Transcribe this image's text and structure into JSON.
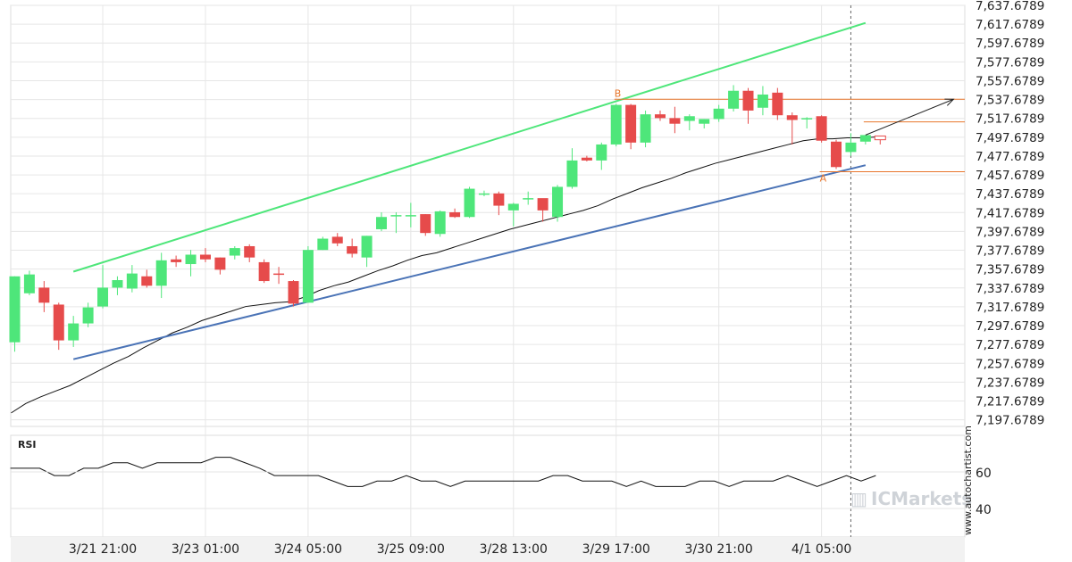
{
  "chart_data": {
    "type": "candlestick",
    "symbol_watermark": "ICMarkets",
    "vertical_credit": "www.autochartist.com",
    "price_axis": {
      "ticks": [
        "7,637.6789",
        "7,617.6789",
        "7,597.6789",
        "7,577.6789",
        "7,557.6789",
        "7,537.6789",
        "7,517.6789",
        "7,497.6789",
        "7,477.6789",
        "7,457.6789",
        "7,437.6789",
        "7,417.6789",
        "7,397.6789",
        "7,377.6789",
        "7,357.6789",
        "7,337.6789",
        "7,317.6789",
        "7,297.6789",
        "7,277.6789",
        "7,257.6789",
        "7,237.6789",
        "7,217.6789",
        "7,197.6789"
      ],
      "ylim": [
        7190.6789,
        7637.6789
      ]
    },
    "x_labels": [
      "3/21 21:00",
      "3/23 01:00",
      "3/24 05:00",
      "3/25 09:00",
      "3/28 13:00",
      "3/29 17:00",
      "3/30 21:00",
      "4/1 05:00"
    ],
    "x_label_bar_index": [
      6,
      13,
      20,
      27,
      34,
      41,
      48,
      55
    ],
    "candles": [
      {
        "o": 7280,
        "h": 7350,
        "l": 7270,
        "c": 7350
      },
      {
        "o": 7332,
        "h": 7356,
        "l": 7330,
        "c": 7352
      },
      {
        "o": 7338,
        "h": 7345,
        "l": 7312,
        "c": 7322
      },
      {
        "o": 7320,
        "h": 7322,
        "l": 7272,
        "c": 7282
      },
      {
        "o": 7282,
        "h": 7308,
        "l": 7275,
        "c": 7300
      },
      {
        "o": 7300,
        "h": 7322,
        "l": 7296,
        "c": 7317
      },
      {
        "o": 7318,
        "h": 7362,
        "l": 7316,
        "c": 7338
      },
      {
        "o": 7338,
        "h": 7350,
        "l": 7330,
        "c": 7346
      },
      {
        "o": 7337,
        "h": 7362,
        "l": 7333,
        "c": 7353
      },
      {
        "o": 7350,
        "h": 7357,
        "l": 7338,
        "c": 7340
      },
      {
        "o": 7340,
        "h": 7375,
        "l": 7327,
        "c": 7367
      },
      {
        "o": 7368,
        "h": 7372,
        "l": 7360,
        "c": 7365
      },
      {
        "o": 7363,
        "h": 7378,
        "l": 7350,
        "c": 7373
      },
      {
        "o": 7373,
        "h": 7380,
        "l": 7365,
        "c": 7368
      },
      {
        "o": 7370,
        "h": 7370,
        "l": 7352,
        "c": 7357
      },
      {
        "o": 7372,
        "h": 7382,
        "l": 7368,
        "c": 7380
      },
      {
        "o": 7382,
        "h": 7384,
        "l": 7365,
        "c": 7370
      },
      {
        "o": 7365,
        "h": 7368,
        "l": 7343,
        "c": 7345
      },
      {
        "o": 7353,
        "h": 7360,
        "l": 7342,
        "c": 7352
      },
      {
        "o": 7345,
        "h": 7346,
        "l": 7318,
        "c": 7321
      },
      {
        "o": 7322,
        "h": 7382,
        "l": 7322,
        "c": 7378
      },
      {
        "o": 7378,
        "h": 7392,
        "l": 7378,
        "c": 7390
      },
      {
        "o": 7392,
        "h": 7396,
        "l": 7382,
        "c": 7385
      },
      {
        "o": 7382,
        "h": 7390,
        "l": 7370,
        "c": 7374
      },
      {
        "o": 7370,
        "h": 7393,
        "l": 7360,
        "c": 7393
      },
      {
        "o": 7400,
        "h": 7418,
        "l": 7398,
        "c": 7413
      },
      {
        "o": 7415,
        "h": 7418,
        "l": 7396,
        "c": 7415
      },
      {
        "o": 7415,
        "h": 7428,
        "l": 7402,
        "c": 7415
      },
      {
        "o": 7416,
        "h": 7416,
        "l": 7393,
        "c": 7396
      },
      {
        "o": 7395,
        "h": 7420,
        "l": 7392,
        "c": 7419
      },
      {
        "o": 7418,
        "h": 7422,
        "l": 7412,
        "c": 7413
      },
      {
        "o": 7413,
        "h": 7445,
        "l": 7412,
        "c": 7443
      },
      {
        "o": 7438,
        "h": 7441,
        "l": 7435,
        "c": 7438
      },
      {
        "o": 7438,
        "h": 7440,
        "l": 7415,
        "c": 7425
      },
      {
        "o": 7420,
        "h": 7428,
        "l": 7403,
        "c": 7427
      },
      {
        "o": 7433,
        "h": 7440,
        "l": 7426,
        "c": 7433
      },
      {
        "o": 7433,
        "h": 7432,
        "l": 7408,
        "c": 7420
      },
      {
        "o": 7413,
        "h": 7447,
        "l": 7408,
        "c": 7445
      },
      {
        "o": 7445,
        "h": 7486,
        "l": 7443,
        "c": 7473
      },
      {
        "o": 7476,
        "h": 7478,
        "l": 7472,
        "c": 7473
      },
      {
        "o": 7473,
        "h": 7492,
        "l": 7463,
        "c": 7490
      },
      {
        "o": 7490,
        "h": 7533,
        "l": 7488,
        "c": 7532
      },
      {
        "o": 7532,
        "h": 7533,
        "l": 7485,
        "c": 7492
      },
      {
        "o": 7492,
        "h": 7526,
        "l": 7487,
        "c": 7522
      },
      {
        "o": 7522,
        "h": 7526,
        "l": 7515,
        "c": 7518
      },
      {
        "o": 7518,
        "h": 7530,
        "l": 7502,
        "c": 7512
      },
      {
        "o": 7515,
        "h": 7522,
        "l": 7505,
        "c": 7520
      },
      {
        "o": 7512,
        "h": 7517,
        "l": 7507,
        "c": 7517
      },
      {
        "o": 7517,
        "h": 7532,
        "l": 7514,
        "c": 7528
      },
      {
        "o": 7528,
        "h": 7553,
        "l": 7525,
        "c": 7547
      },
      {
        "o": 7547,
        "h": 7550,
        "l": 7512,
        "c": 7526
      },
      {
        "o": 7529,
        "h": 7552,
        "l": 7521,
        "c": 7543
      },
      {
        "o": 7545,
        "h": 7550,
        "l": 7516,
        "c": 7521
      },
      {
        "o": 7521,
        "h": 7524,
        "l": 7490,
        "c": 7516
      },
      {
        "o": 7518,
        "h": 7519,
        "l": 7507,
        "c": 7518
      },
      {
        "o": 7520,
        "h": 7521,
        "l": 7492,
        "c": 7494
      },
      {
        "o": 7493,
        "h": 7495,
        "l": 7464,
        "c": 7466
      },
      {
        "o": 7482,
        "h": 7502,
        "l": 7478,
        "c": 7492
      },
      {
        "o": 7493,
        "h": 7500,
        "l": 7490,
        "c": 7500
      },
      {
        "o": 7499,
        "h": 7499,
        "l": 7490,
        "c": 7495
      }
    ],
    "moving_average": [
      7205,
      7215,
      7222,
      7228,
      7234,
      7242,
      7250,
      7258,
      7265,
      7274,
      7282,
      7290,
      7296,
      7303,
      7308,
      7313,
      7318,
      7320,
      7322,
      7323,
      7328,
      7335,
      7340,
      7344,
      7350,
      7356,
      7361,
      7367,
      7372,
      7375,
      7380,
      7385,
      7390,
      7395,
      7400,
      7404,
      7408,
      7412,
      7416,
      7420,
      7425,
      7432,
      7438,
      7444,
      7449,
      7454,
      7460,
      7465,
      7470,
      7474,
      7478,
      7482,
      7486,
      7490,
      7494,
      7496,
      7496,
      7497,
      7497,
      7498
    ],
    "channel": {
      "upper": {
        "x": [
          4,
          58
        ],
        "y": [
          7355,
          7619
        ]
      },
      "lower": {
        "x": [
          4,
          58
        ],
        "y": [
          7262,
          7468
        ]
      },
      "color_upper": "#4ee67a",
      "color_lower": "#4a73b6"
    },
    "horizontal_levels": [
      {
        "label": "B",
        "value": 7538,
        "from_bar": 41
      },
      {
        "label": "",
        "value": 7514,
        "from_bar": 58
      },
      {
        "label": "A",
        "value": 7461,
        "from_bar": 55
      }
    ],
    "projection_arrow": {
      "from": {
        "x": 58,
        "y": 7500
      },
      "to": {
        "x": 64,
        "y": 7538
      }
    },
    "rsi": {
      "label": "RSI",
      "ticks": [
        "60",
        "40"
      ],
      "values": [
        62,
        62,
        62,
        58,
        58,
        62,
        62,
        65,
        65,
        62,
        65,
        65,
        65,
        65,
        68,
        68,
        65,
        62,
        58,
        58,
        58,
        58,
        55,
        52,
        52,
        55,
        55,
        58,
        55,
        55,
        52,
        55,
        55,
        55,
        55,
        55,
        55,
        58,
        58,
        55,
        55,
        55,
        52,
        55,
        52,
        52,
        52,
        55,
        55,
        52,
        55,
        55,
        55,
        58,
        55,
        52,
        55,
        58,
        55,
        58
      ]
    },
    "colors": {
      "bull": "#4ee67a",
      "bear": "#e64b4b",
      "level": "#e8762c",
      "ma": "#111111",
      "grid": "#e6e6e6"
    }
  }
}
